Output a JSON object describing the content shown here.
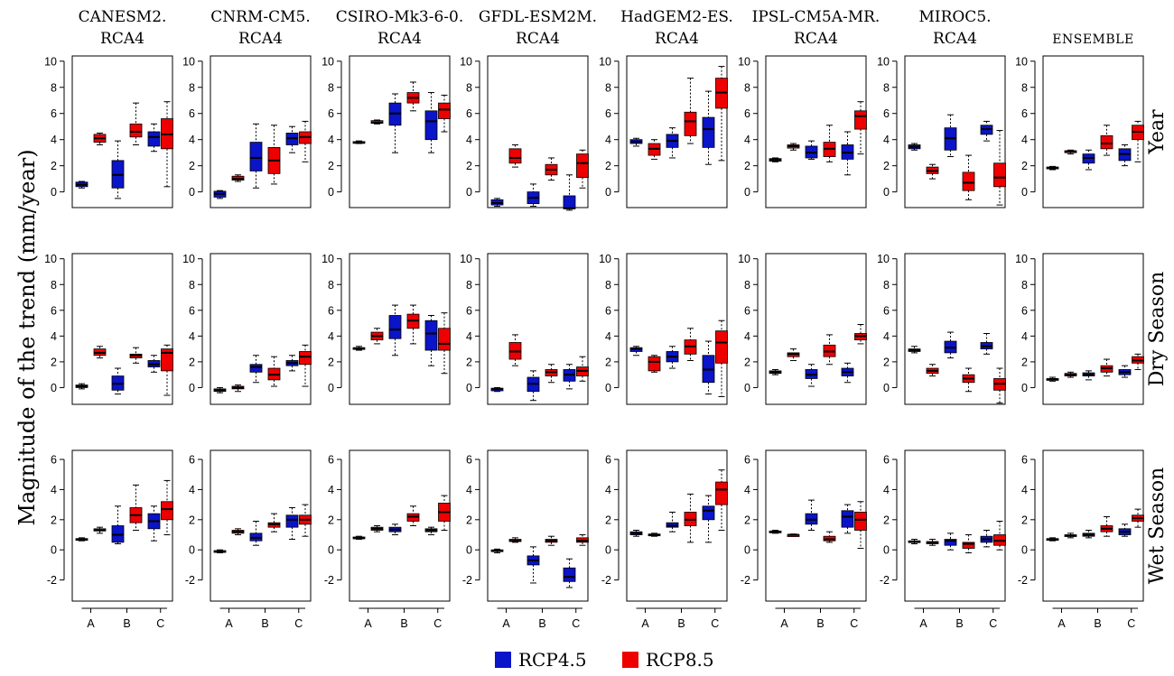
{
  "figure": {
    "ylabel": "Magnitude of the trend (mm/year)",
    "legend": [
      {
        "label": "RCP4.5",
        "color": "#0a14c8"
      },
      {
        "label": "RCP8.5",
        "color": "#ee0000"
      }
    ]
  },
  "chart_data": {
    "type": "boxplot",
    "columns": [
      [
        "CANESM2.",
        "RCA4"
      ],
      [
        "CNRM-CM5.",
        "RCA4"
      ],
      [
        "CSIRO-Mk3-6-0.",
        "RCA4"
      ],
      [
        "GFDL-ESM2M.",
        "RCA4"
      ],
      [
        "HadGEM2-ES.",
        "RCA4"
      ],
      [
        "IPSL-CM5A-MR.",
        "RCA4"
      ],
      [
        "MIROC5.",
        "RCA4"
      ],
      [
        "ENSEMBLE"
      ]
    ],
    "rows": [
      "Year",
      "Dry Season",
      "Wet Season"
    ],
    "x_categories": [
      "A",
      "B",
      "C"
    ],
    "ylim": [
      [
        -1.2,
        10.4
      ],
      [
        -1.3,
        10.4
      ],
      [
        -3.4,
        6.6
      ]
    ],
    "yticks": [
      [
        0,
        2,
        4,
        6,
        8,
        10
      ],
      [
        0,
        2,
        4,
        6,
        8,
        10
      ],
      [
        -2,
        0,
        2,
        4,
        6
      ]
    ],
    "series_order": [
      "RCP4.5",
      "RCP8.5"
    ],
    "box_stats_format": "[whisker_low, q1, median, q3, whisker_high]",
    "boxes": [
      [
        [
          [
            0.3,
            0.4,
            0.55,
            0.75,
            0.8
          ],
          [
            3.6,
            3.8,
            4.1,
            4.4,
            4.5
          ],
          [
            -0.5,
            0.3,
            1.3,
            2.4,
            3.9
          ],
          [
            3.6,
            4.2,
            4.6,
            5.2,
            6.8
          ],
          [
            3.1,
            3.5,
            4.2,
            4.6,
            5.2
          ],
          [
            0.4,
            3.3,
            4.4,
            5.6,
            6.9
          ]
        ],
        [
          [
            -0.5,
            -0.4,
            -0.15,
            0.05,
            0.1
          ],
          [
            0.8,
            0.9,
            1.0,
            1.2,
            1.3
          ],
          [
            0.3,
            1.6,
            2.6,
            3.8,
            5.2
          ],
          [
            0.6,
            1.4,
            2.4,
            3.4,
            5.1
          ],
          [
            3.0,
            3.6,
            4.1,
            4.5,
            5.0
          ],
          [
            2.3,
            3.7,
            4.2,
            4.6,
            5.4
          ]
        ],
        [
          [
            3.7,
            3.75,
            3.8,
            3.85,
            3.9
          ],
          [
            5.2,
            5.25,
            5.3,
            5.45,
            5.5
          ],
          [
            3.0,
            5.1,
            6.0,
            6.8,
            7.5
          ],
          [
            6.2,
            6.8,
            7.2,
            7.6,
            8.4
          ],
          [
            3.0,
            4.0,
            5.4,
            6.2,
            7.6
          ],
          [
            4.6,
            5.6,
            6.3,
            6.8,
            7.4
          ]
        ],
        [
          [
            -1.1,
            -1.0,
            -0.85,
            -0.6,
            -0.5
          ],
          [
            1.9,
            2.2,
            2.6,
            3.3,
            3.6
          ],
          [
            -1.1,
            -0.9,
            -0.45,
            0.0,
            0.6
          ],
          [
            0.9,
            1.3,
            1.7,
            2.1,
            2.6
          ],
          [
            -1.4,
            -1.3,
            -1.25,
            -0.3,
            1.3
          ],
          [
            0.3,
            1.1,
            2.2,
            2.9,
            3.2
          ]
        ],
        [
          [
            3.5,
            3.7,
            3.85,
            4.0,
            4.1
          ],
          [
            2.5,
            2.8,
            3.3,
            3.7,
            4.0
          ],
          [
            2.6,
            3.4,
            3.9,
            4.4,
            4.9
          ],
          [
            3.7,
            4.3,
            5.4,
            6.1,
            8.7
          ],
          [
            2.1,
            3.4,
            4.8,
            5.7,
            7.7
          ],
          [
            2.4,
            6.4,
            7.6,
            8.7,
            9.6
          ]
        ],
        [
          [
            2.3,
            2.35,
            2.45,
            2.55,
            2.6
          ],
          [
            3.2,
            3.35,
            3.5,
            3.6,
            3.7
          ],
          [
            2.5,
            2.6,
            3.0,
            3.5,
            3.9
          ],
          [
            2.3,
            2.7,
            3.3,
            3.8,
            5.1
          ],
          [
            1.3,
            2.5,
            3.0,
            3.6,
            4.6
          ],
          [
            2.9,
            4.8,
            5.8,
            6.2,
            6.9
          ]
        ],
        [
          [
            3.2,
            3.3,
            3.45,
            3.6,
            3.7
          ],
          [
            1.0,
            1.4,
            1.6,
            1.9,
            2.1
          ],
          [
            2.7,
            3.2,
            4.1,
            4.9,
            5.9
          ],
          [
            -0.6,
            0.1,
            0.7,
            1.5,
            2.8
          ],
          [
            3.9,
            4.4,
            4.8,
            5.1,
            5.4
          ],
          [
            -1.0,
            0.4,
            1.1,
            2.2,
            4.7
          ]
        ],
        [
          [
            1.7,
            1.8,
            1.85,
            1.9,
            1.95
          ],
          [
            2.9,
            3.0,
            3.1,
            3.15,
            3.2
          ],
          [
            1.7,
            2.2,
            2.6,
            2.9,
            3.2
          ],
          [
            2.8,
            3.3,
            3.7,
            4.3,
            5.1
          ],
          [
            2.0,
            2.4,
            2.9,
            3.3,
            3.6
          ],
          [
            2.3,
            4.0,
            4.6,
            5.1,
            5.4
          ]
        ]
      ],
      [
        [
          [
            -0.1,
            0.0,
            0.1,
            0.2,
            0.3
          ],
          [
            2.3,
            2.5,
            2.7,
            3.0,
            3.2
          ],
          [
            -0.5,
            -0.2,
            0.3,
            0.9,
            1.5
          ],
          [
            1.9,
            2.3,
            2.5,
            2.6,
            3.1
          ],
          [
            1.2,
            1.6,
            1.8,
            2.1,
            2.5
          ],
          [
            -0.6,
            1.3,
            2.7,
            3.0,
            3.3
          ]
        ],
        [
          [
            -0.4,
            -0.3,
            -0.2,
            -0.1,
            0.0
          ],
          [
            -0.3,
            -0.1,
            0.0,
            0.1,
            0.2
          ],
          [
            0.4,
            1.2,
            1.6,
            1.8,
            2.5
          ],
          [
            0.1,
            0.6,
            1.0,
            1.5,
            2.4
          ],
          [
            1.3,
            1.7,
            1.9,
            2.1,
            2.5
          ],
          [
            0.1,
            1.8,
            2.4,
            2.8,
            3.3
          ]
        ],
        [
          [
            2.9,
            3.0,
            3.05,
            3.1,
            3.2
          ],
          [
            3.4,
            3.7,
            4.0,
            4.3,
            4.6
          ],
          [
            2.5,
            3.8,
            4.5,
            5.6,
            6.4
          ],
          [
            3.4,
            4.6,
            5.2,
            5.7,
            6.4
          ],
          [
            1.7,
            2.9,
            4.2,
            5.2,
            5.6
          ],
          [
            1.1,
            2.9,
            3.4,
            4.6,
            5.8
          ]
        ],
        [
          [
            -0.3,
            -0.25,
            -0.1,
            -0.05,
            0.0
          ],
          [
            1.7,
            2.2,
            2.8,
            3.5,
            4.1
          ],
          [
            -1.0,
            -0.3,
            0.3,
            0.8,
            1.3
          ],
          [
            0.4,
            0.9,
            1.2,
            1.4,
            1.8
          ],
          [
            -0.1,
            0.5,
            1.0,
            1.4,
            1.8
          ],
          [
            0.5,
            0.9,
            1.3,
            1.6,
            2.4
          ]
        ],
        [
          [
            2.5,
            2.8,
            3.0,
            3.1,
            3.2
          ],
          [
            1.2,
            1.3,
            2.0,
            2.4,
            2.5
          ],
          [
            1.5,
            2.0,
            2.4,
            2.8,
            3.2
          ],
          [
            2.1,
            2.6,
            3.2,
            3.7,
            4.6
          ],
          [
            -0.5,
            0.4,
            1.4,
            2.5,
            3.6
          ],
          [
            -0.7,
            1.9,
            3.5,
            4.4,
            5.2
          ]
        ],
        [
          [
            1.0,
            1.1,
            1.2,
            1.3,
            1.4
          ],
          [
            2.1,
            2.4,
            2.6,
            2.7,
            3.0
          ],
          [
            0.1,
            0.7,
            1.0,
            1.4,
            1.8
          ],
          [
            1.8,
            2.4,
            2.8,
            3.3,
            4.1
          ],
          [
            0.4,
            0.9,
            1.2,
            1.5,
            1.9
          ],
          [
            3.4,
            3.7,
            4.0,
            4.2,
            4.9
          ]
        ],
        [
          [
            2.7,
            2.8,
            2.9,
            3.0,
            3.2
          ],
          [
            0.9,
            1.1,
            1.3,
            1.5,
            1.8
          ],
          [
            2.3,
            2.7,
            3.1,
            3.6,
            4.3
          ],
          [
            -0.3,
            0.4,
            0.7,
            1.0,
            1.5
          ],
          [
            2.6,
            3.0,
            3.2,
            3.5,
            4.2
          ],
          [
            -1.2,
            -0.2,
            0.3,
            0.7,
            1.5
          ]
        ],
        [
          [
            0.5,
            0.6,
            0.65,
            0.7,
            0.8
          ],
          [
            0.8,
            0.9,
            1.0,
            1.1,
            1.2
          ],
          [
            0.6,
            0.9,
            1.0,
            1.15,
            1.3
          ],
          [
            0.9,
            1.2,
            1.5,
            1.7,
            2.2
          ],
          [
            0.8,
            1.0,
            1.2,
            1.4,
            1.7
          ],
          [
            1.4,
            1.9,
            2.1,
            2.4,
            2.6
          ]
        ]
      ],
      [
        [
          [
            0.6,
            0.65,
            0.7,
            0.75,
            0.8
          ],
          [
            1.1,
            1.25,
            1.3,
            1.4,
            1.5
          ],
          [
            0.4,
            0.5,
            1.0,
            1.6,
            2.9
          ],
          [
            1.3,
            1.8,
            2.3,
            2.8,
            4.3
          ],
          [
            0.6,
            1.4,
            1.9,
            2.4,
            2.9
          ],
          [
            1.0,
            2.0,
            2.7,
            3.2,
            4.6
          ]
        ],
        [
          [
            -0.2,
            -0.15,
            -0.1,
            -0.05,
            0.0
          ],
          [
            1.0,
            1.1,
            1.2,
            1.3,
            1.4
          ],
          [
            0.3,
            0.6,
            0.8,
            1.1,
            1.9
          ],
          [
            1.2,
            1.5,
            1.7,
            1.8,
            2.4
          ],
          [
            0.7,
            1.5,
            2.0,
            2.3,
            2.8
          ],
          [
            0.9,
            1.7,
            2.0,
            2.3,
            3.0
          ]
        ],
        [
          [
            0.7,
            0.75,
            0.8,
            0.85,
            0.9
          ],
          [
            1.2,
            1.3,
            1.4,
            1.5,
            1.6
          ],
          [
            1.0,
            1.2,
            1.35,
            1.5,
            1.7
          ],
          [
            1.6,
            1.9,
            2.2,
            2.4,
            2.9
          ],
          [
            1.0,
            1.2,
            1.3,
            1.4,
            1.5
          ],
          [
            1.3,
            1.9,
            2.5,
            3.1,
            3.6
          ]
        ],
        [
          [
            -0.2,
            -0.1,
            -0.05,
            0.0,
            0.05
          ],
          [
            0.5,
            0.55,
            0.6,
            0.7,
            0.8
          ],
          [
            -2.2,
            -1.0,
            -0.7,
            -0.4,
            0.2
          ],
          [
            0.3,
            0.5,
            0.6,
            0.7,
            0.9
          ],
          [
            -2.5,
            -2.1,
            -1.8,
            -1.2,
            -0.6
          ],
          [
            0.3,
            0.5,
            0.6,
            0.8,
            1.0
          ]
        ],
        [
          [
            0.9,
            1.0,
            1.1,
            1.2,
            1.3
          ],
          [
            0.9,
            0.95,
            1.0,
            1.05,
            1.1
          ],
          [
            1.2,
            1.5,
            1.6,
            1.8,
            2.5
          ],
          [
            0.5,
            1.6,
            2.0,
            2.5,
            3.7
          ],
          [
            0.5,
            2.0,
            2.6,
            2.9,
            3.6
          ],
          [
            1.3,
            3.0,
            4.0,
            4.5,
            5.3
          ]
        ],
        [
          [
            1.1,
            1.15,
            1.2,
            1.25,
            1.3
          ],
          [
            0.9,
            0.95,
            1.0,
            1.0,
            1.05
          ],
          [
            1.3,
            1.7,
            2.0,
            2.4,
            3.3
          ],
          [
            0.5,
            0.6,
            0.7,
            0.9,
            1.2
          ],
          [
            1.1,
            1.5,
            2.2,
            2.6,
            3.0
          ],
          [
            0.1,
            1.3,
            2.0,
            2.5,
            3.2
          ]
        ],
        [
          [
            0.4,
            0.5,
            0.55,
            0.6,
            0.7
          ],
          [
            0.3,
            0.4,
            0.5,
            0.55,
            0.7
          ],
          [
            0.0,
            0.3,
            0.6,
            0.7,
            1.1
          ],
          [
            -0.2,
            0.1,
            0.4,
            0.5,
            1.0
          ],
          [
            0.2,
            0.5,
            0.7,
            0.9,
            1.3
          ],
          [
            0.0,
            0.3,
            0.6,
            1.0,
            1.9
          ]
        ],
        [
          [
            0.6,
            0.65,
            0.7,
            0.75,
            0.8
          ],
          [
            0.8,
            0.9,
            0.95,
            1.0,
            1.1
          ],
          [
            0.8,
            0.9,
            1.0,
            1.1,
            1.3
          ],
          [
            0.9,
            1.2,
            1.4,
            1.6,
            2.2
          ],
          [
            0.9,
            1.0,
            1.2,
            1.4,
            1.7
          ],
          [
            1.5,
            1.9,
            2.1,
            2.3,
            2.7
          ]
        ]
      ]
    ]
  }
}
